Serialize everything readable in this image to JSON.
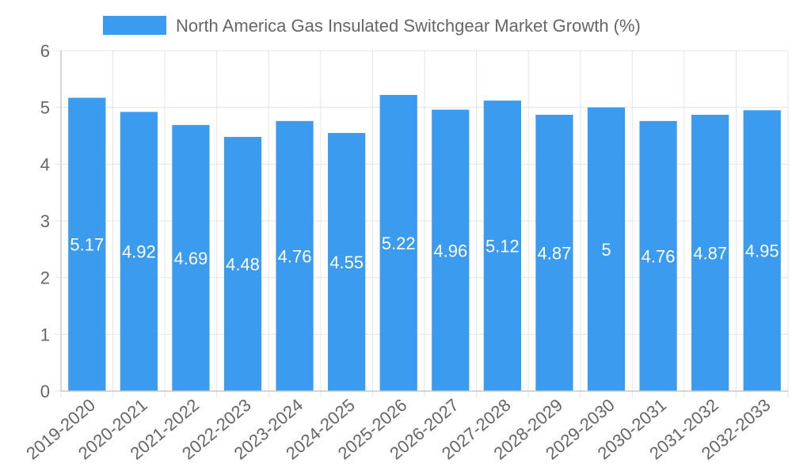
{
  "colors": {
    "bar": "#3a9bef",
    "grid": "#e4e4e4",
    "axis": "#c8c8c8",
    "tick_text": "#666666",
    "legend_text": "#666666",
    "data_label": "#ffffff"
  },
  "chart_data": {
    "type": "bar",
    "title": "",
    "xlabel": "",
    "ylabel": "",
    "legend": {
      "position": "top-center",
      "label": "North America Gas Insulated Switchgear Market Growth (%)"
    },
    "ylim": [
      0,
      6
    ],
    "yticks": [
      "0",
      "1",
      "2",
      "3",
      "4",
      "5",
      "6"
    ],
    "grid": true,
    "categories": [
      "2019-2020",
      "2020-2021",
      "2021-2022",
      "2022-2023",
      "2023-2024",
      "2024-2025",
      "2025-2026",
      "2026-2027",
      "2027-2028",
      "2028-2029",
      "2029-2030",
      "2030-2031",
      "2031-2032",
      "2032-2033"
    ],
    "series": [
      {
        "name": "North America Gas Insulated Switchgear Market Growth (%)",
        "values": [
          5.17,
          4.92,
          4.69,
          4.48,
          4.76,
          4.55,
          5.22,
          4.96,
          5.12,
          4.87,
          5,
          4.76,
          4.87,
          4.95
        ],
        "labels": [
          "5.17",
          "4.92",
          "4.69",
          "4.48",
          "4.76",
          "4.55",
          "5.22",
          "4.96",
          "5.12",
          "4.87",
          "5",
          "4.76",
          "4.87",
          "4.95"
        ]
      }
    ]
  }
}
